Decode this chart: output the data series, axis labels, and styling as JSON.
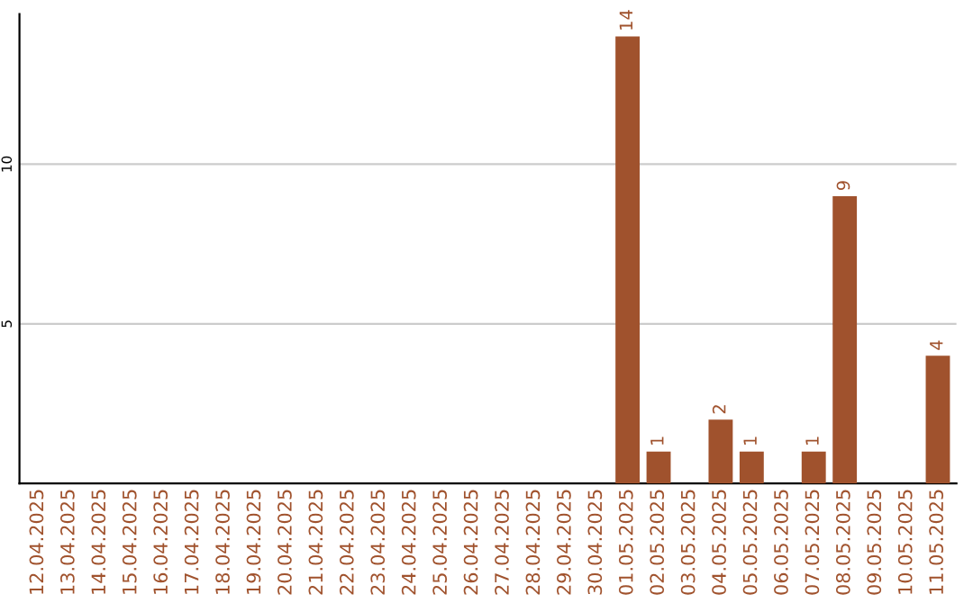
{
  "chart_data": {
    "type": "bar",
    "categories": [
      "12.04.2025",
      "13.04.2025",
      "14.04.2025",
      "15.04.2025",
      "16.04.2025",
      "17.04.2025",
      "18.04.2025",
      "19.04.2025",
      "20.04.2025",
      "21.04.2025",
      "22.04.2025",
      "23.04.2025",
      "24.04.2025",
      "25.04.2025",
      "26.04.2025",
      "27.04.2025",
      "28.04.2025",
      "29.04.2025",
      "30.04.2025",
      "01.05.2025",
      "02.05.2025",
      "03.05.2025",
      "04.05.2025",
      "05.05.2025",
      "06.05.2025",
      "07.05.2025",
      "08.05.2025",
      "09.05.2025",
      "10.05.2025",
      "11.05.2025"
    ],
    "values": [
      0,
      0,
      0,
      0,
      0,
      0,
      0,
      0,
      0,
      0,
      0,
      0,
      0,
      0,
      0,
      0,
      0,
      0,
      0,
      14,
      1,
      0,
      2,
      1,
      0,
      1,
      9,
      0,
      0,
      4
    ],
    "value_labels": [
      null,
      null,
      null,
      null,
      null,
      null,
      null,
      null,
      null,
      null,
      null,
      null,
      null,
      null,
      null,
      null,
      null,
      null,
      null,
      "14",
      "1",
      null,
      "2",
      "1",
      null,
      "1",
      "9",
      null,
      null,
      "4"
    ],
    "color": "#a0522d",
    "ylim": [
      0,
      14.7
    ],
    "yticks": [
      5,
      10
    ],
    "grid": "y"
  }
}
